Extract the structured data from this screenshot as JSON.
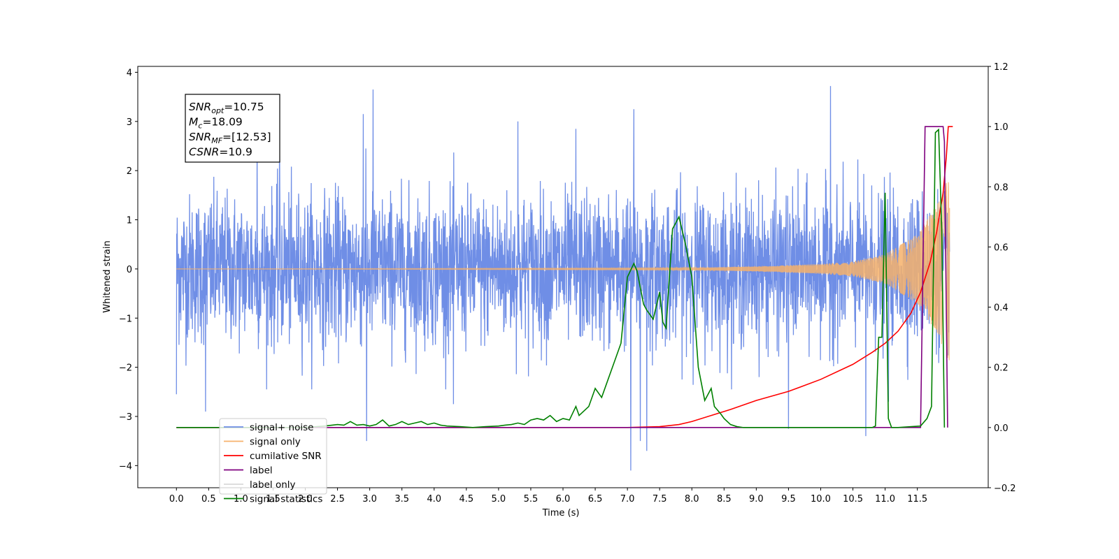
{
  "chart_data": {
    "type": "line",
    "title": "",
    "xlabel": "Time (s)",
    "ylabel": "Whitened strain",
    "xlim": [
      -0.6,
      12.6
    ],
    "ylim": [
      -4.45,
      4.12
    ],
    "y2lim": [
      -0.2,
      1.2
    ],
    "xticks": [
      0.0,
      0.5,
      1.0,
      1.5,
      2.0,
      2.5,
      3.0,
      3.5,
      4.0,
      4.5,
      5.0,
      5.5,
      6.0,
      6.5,
      7.0,
      7.5,
      8.0,
      8.5,
      9.0,
      9.5,
      10.0,
      10.5,
      11.0,
      11.5
    ],
    "yticks": [
      -4,
      -3,
      -2,
      -1,
      0,
      1,
      2,
      3,
      4
    ],
    "y2ticks": [
      -0.2,
      0.0,
      0.2,
      0.4,
      0.6,
      0.8,
      1.0,
      1.2
    ],
    "grid": false,
    "legend_position": "lower-left",
    "annotation": {
      "lines": [
        {
          "var": "SNR",
          "sub": "opt",
          "value": "=10.75"
        },
        {
          "var": "M",
          "sub": "c",
          "value": "=18.09"
        },
        {
          "var": "SNR",
          "sub": "MF",
          "value": "=[12.53]"
        },
        {
          "var": "CSNR",
          "sub": "",
          "value": "=10.9"
        }
      ]
    },
    "series": [
      {
        "name": "signal+ noise",
        "color": "#6f8ee6",
        "axis": "left",
        "kind": "noise",
        "x_range": [
          0.0,
          12.0
        ],
        "std": 0.75,
        "peaks": [
          {
            "x": 0.0,
            "y": -2.55
          },
          {
            "x": 0.45,
            "y": -2.9
          },
          {
            "x": 1.25,
            "y": 2.9
          },
          {
            "x": 1.6,
            "y": 2.95
          },
          {
            "x": 2.9,
            "y": 3.15
          },
          {
            "x": 2.95,
            "y": -3.5
          },
          {
            "x": 3.05,
            "y": 3.65
          },
          {
            "x": 4.3,
            "y": -2.75
          },
          {
            "x": 5.3,
            "y": 3.0
          },
          {
            "x": 6.2,
            "y": 2.85
          },
          {
            "x": 7.05,
            "y": -4.1
          },
          {
            "x": 7.2,
            "y": -3.5
          },
          {
            "x": 7.3,
            "y": -3.7
          },
          {
            "x": 7.1,
            "y": 3.25
          },
          {
            "x": 9.5,
            "y": -3.25
          },
          {
            "x": 10.15,
            "y": 3.72
          },
          {
            "x": 10.7,
            "y": -3.4
          },
          {
            "x": 11.0,
            "y": 1.55
          },
          {
            "x": 11.05,
            "y": -2.7
          }
        ]
      },
      {
        "name": "signal only",
        "color": "#f6b26b",
        "axis": "left",
        "kind": "chirp",
        "x_range": [
          0.0,
          12.0
        ],
        "envelope": [
          [
            0.0,
            0.0
          ],
          [
            8.0,
            0.02
          ],
          [
            9.0,
            0.05
          ],
          [
            10.0,
            0.1
          ],
          [
            10.5,
            0.15
          ],
          [
            11.0,
            0.3
          ],
          [
            11.5,
            0.7
          ],
          [
            11.8,
            1.3
          ],
          [
            12.0,
            1.9
          ]
        ]
      },
      {
        "name": "cumilative SNR",
        "color": "#ff0000",
        "axis": "right",
        "x": [
          0.0,
          6.5,
          7.0,
          7.5,
          7.8,
          8.0,
          8.3,
          8.6,
          9.0,
          9.5,
          10.0,
          10.5,
          10.8,
          11.0,
          11.2,
          11.4,
          11.55,
          11.7,
          11.8,
          11.9,
          11.95,
          11.98,
          12.0,
          12.05
        ],
        "y": [
          0.0,
          0.0,
          0.0,
          0.003,
          0.01,
          0.02,
          0.04,
          0.06,
          0.09,
          0.12,
          0.16,
          0.21,
          0.25,
          0.28,
          0.32,
          0.38,
          0.45,
          0.55,
          0.65,
          0.78,
          0.9,
          1.0,
          1.0,
          1.0
        ]
      },
      {
        "name": "label",
        "color": "#7f007f",
        "axis": "right",
        "x": [
          0.0,
          11.55,
          11.62,
          11.9,
          11.92,
          11.97
        ],
        "y": [
          0.0,
          0.0,
          1.0,
          1.0,
          0.95,
          0.0
        ]
      },
      {
        "name": "label only",
        "color": "#d9d9d9",
        "axis": "right",
        "x": [],
        "y": []
      },
      {
        "name": "signal statistics",
        "color": "#008000",
        "axis": "right",
        "x": [
          0.0,
          1.0,
          2.0,
          2.3,
          2.5,
          2.6,
          2.7,
          2.8,
          2.9,
          3.0,
          3.1,
          3.2,
          3.3,
          3.4,
          3.5,
          3.6,
          3.7,
          3.8,
          3.9,
          4.0,
          4.1,
          4.2,
          4.4,
          4.6,
          4.8,
          5.0,
          5.1,
          5.2,
          5.3,
          5.4,
          5.5,
          5.6,
          5.7,
          5.8,
          5.9,
          6.0,
          6.1,
          6.2,
          6.25,
          6.3,
          6.4,
          6.5,
          6.6,
          6.7,
          6.8,
          6.9,
          7.0,
          7.1,
          7.15,
          7.25,
          7.3,
          7.4,
          7.5,
          7.55,
          7.6,
          7.7,
          7.8,
          7.9,
          8.0,
          8.1,
          8.2,
          8.3,
          8.35,
          8.45,
          8.5,
          8.6,
          8.7,
          8.8,
          9.0,
          10.0,
          10.5,
          10.8,
          10.85,
          10.9,
          10.95,
          11.0,
          11.05,
          11.1,
          11.2,
          11.55,
          11.65,
          11.72,
          11.78,
          11.83,
          11.88,
          11.92
        ],
        "y": [
          0.0,
          0.0,
          0.0,
          0.005,
          0.01,
          0.008,
          0.02,
          0.008,
          0.01,
          0.005,
          0.01,
          0.025,
          0.005,
          0.01,
          0.02,
          0.01,
          0.015,
          0.02,
          0.01,
          0.015,
          0.008,
          0.005,
          0.003,
          0.0,
          0.003,
          0.005,
          0.008,
          0.01,
          0.015,
          0.01,
          0.025,
          0.03,
          0.025,
          0.04,
          0.02,
          0.03,
          0.025,
          0.07,
          0.04,
          0.05,
          0.07,
          0.13,
          0.1,
          0.16,
          0.22,
          0.28,
          0.5,
          0.545,
          0.52,
          0.41,
          0.39,
          0.36,
          0.45,
          0.35,
          0.33,
          0.66,
          0.7,
          0.61,
          0.5,
          0.2,
          0.09,
          0.13,
          0.07,
          0.045,
          0.03,
          0.01,
          0.003,
          0.0,
          0.0,
          0.0,
          0.0,
          0.0,
          0.005,
          0.3,
          0.3,
          0.78,
          0.03,
          0.0,
          0.0,
          0.005,
          0.03,
          0.07,
          0.98,
          0.99,
          0.65,
          0.0
        ]
      }
    ]
  }
}
